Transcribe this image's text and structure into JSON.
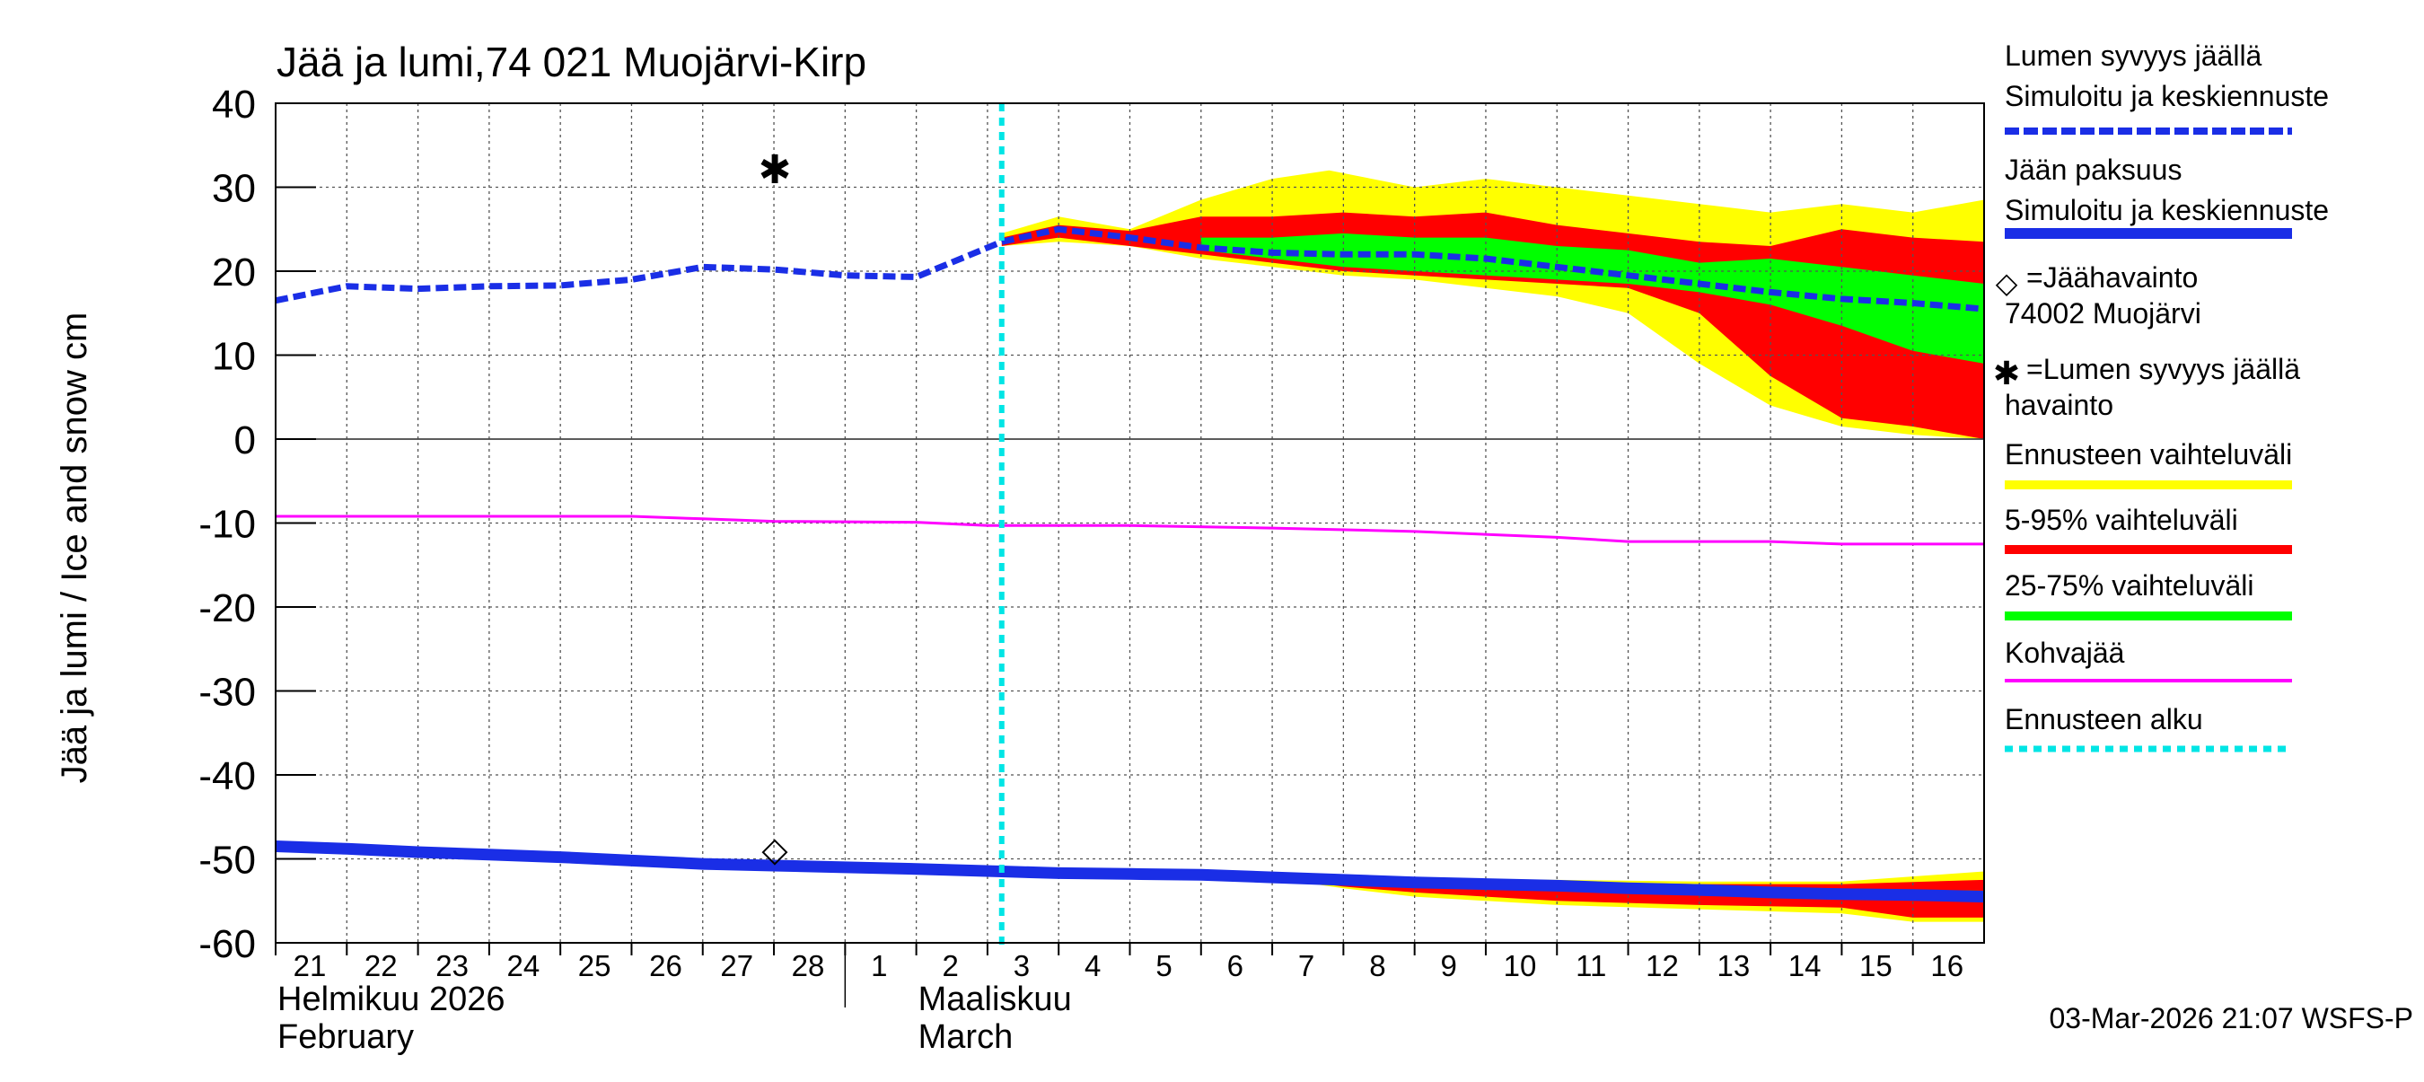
{
  "chart_data": {
    "type": "area",
    "title": "Jää ja lumi,74 021 Muojärvi-Kirp",
    "ylabel": "Jää ja lumi / Ice and snow    cm",
    "ylim": [
      -60,
      40
    ],
    "yticks": [
      40,
      30,
      20,
      10,
      0,
      -10,
      -20,
      -30,
      -40,
      -50,
      -60
    ],
    "day_start": 21,
    "x_range_days": [
      0,
      24
    ],
    "x_tick_labels": [
      "21",
      "22",
      "23",
      "24",
      "25",
      "26",
      "27",
      "28",
      "1",
      "2",
      "3",
      "4",
      "5",
      "6",
      "7",
      "8",
      "9",
      "10",
      "11",
      "12",
      "13",
      "14",
      "15",
      "16"
    ],
    "month_labels": [
      {
        "line1": "Helmikuu  2026",
        "line2": "February",
        "day": 0
      },
      {
        "line1": "Maaliskuu",
        "line2": "March",
        "day": 9
      }
    ],
    "month_divider_day": 8,
    "forecast_start_day": 10.2,
    "timestamp": "03-Mar-2026 21:07 WSFS-P",
    "series": {
      "snow_sim": {
        "name": "Lumen syvyys jäällä Simuloitu ja keskiennuste",
        "color": "#1a2ee6",
        "points": [
          [
            0,
            16.5
          ],
          [
            1,
            18.2
          ],
          [
            2,
            17.9
          ],
          [
            3,
            18.2
          ],
          [
            4,
            18.3
          ],
          [
            5,
            19.0
          ],
          [
            6,
            20.5
          ],
          [
            7,
            20.2
          ],
          [
            8,
            19.5
          ],
          [
            9,
            19.3
          ],
          [
            10.2,
            23.5
          ],
          [
            11,
            25.0
          ],
          [
            12,
            24.0
          ],
          [
            13,
            22.8
          ],
          [
            14,
            22.2
          ],
          [
            15,
            22.0
          ],
          [
            16,
            22.0
          ],
          [
            17,
            21.5
          ],
          [
            18,
            20.5
          ],
          [
            19,
            19.5
          ],
          [
            20,
            18.5
          ],
          [
            21,
            17.5
          ],
          [
            22,
            16.7
          ],
          [
            23,
            16.2
          ],
          [
            24,
            15.5
          ]
        ]
      },
      "ice_sim": {
        "name": "Jään paksuus Simuloitu ja keskiennuste",
        "color": "#1a2ee6",
        "points": [
          [
            0,
            -48.5
          ],
          [
            1,
            -48.8
          ],
          [
            2,
            -49.2
          ],
          [
            3,
            -49.5
          ],
          [
            4,
            -49.8
          ],
          [
            5,
            -50.2
          ],
          [
            6,
            -50.6
          ],
          [
            7,
            -50.8
          ],
          [
            8,
            -51.0
          ],
          [
            9,
            -51.2
          ],
          [
            10.2,
            -51.5
          ],
          [
            11,
            -51.7
          ],
          [
            12,
            -51.8
          ],
          [
            13,
            -51.9
          ],
          [
            14,
            -52.2
          ],
          [
            15,
            -52.5
          ],
          [
            16,
            -52.8
          ],
          [
            17,
            -53.0
          ],
          [
            18,
            -53.2
          ],
          [
            19,
            -53.5
          ],
          [
            20,
            -53.7
          ],
          [
            21,
            -54.0
          ],
          [
            22,
            -54.2
          ],
          [
            23,
            -54.3
          ],
          [
            24,
            -54.5
          ]
        ]
      },
      "slush": {
        "name": "Kohvajää",
        "color": "#ff00ff",
        "points": [
          [
            0,
            -9.2
          ],
          [
            5,
            -9.2
          ],
          [
            6,
            -9.5
          ],
          [
            7,
            -9.8
          ],
          [
            9,
            -9.9
          ],
          [
            10,
            -10.3
          ],
          [
            12,
            -10.3
          ],
          [
            14,
            -10.6
          ],
          [
            16,
            -11.0
          ],
          [
            18,
            -11.7
          ],
          [
            19,
            -12.2
          ],
          [
            21,
            -12.2
          ],
          [
            22,
            -12.5
          ],
          [
            24,
            -12.5
          ]
        ]
      }
    },
    "bands": [
      {
        "name": "Ennusteen vaihteluväli",
        "color": "#ffff00",
        "upper": [
          [
            10.2,
            24.5
          ],
          [
            11,
            26.5
          ],
          [
            12,
            25.0
          ],
          [
            13,
            28.5
          ],
          [
            14,
            31.0
          ],
          [
            14.8,
            32.0
          ],
          [
            16,
            30.0
          ],
          [
            17,
            31.0
          ],
          [
            18,
            30.0
          ],
          [
            19,
            29.0
          ],
          [
            20,
            28.0
          ],
          [
            21,
            27.0
          ],
          [
            22,
            28.0
          ],
          [
            23,
            27.0
          ],
          [
            24,
            28.5
          ]
        ],
        "lower": [
          [
            10.2,
            23.0
          ],
          [
            11,
            23.5
          ],
          [
            12,
            23.0
          ],
          [
            13,
            21.5
          ],
          [
            14,
            20.5
          ],
          [
            15,
            19.5
          ],
          [
            16,
            19.0
          ],
          [
            17,
            18.0
          ],
          [
            18,
            17.0
          ],
          [
            19,
            15.0
          ],
          [
            20,
            9.0
          ],
          [
            21,
            4.0
          ],
          [
            22,
            1.5
          ],
          [
            23,
            0.5
          ],
          [
            24,
            0.0
          ]
        ]
      },
      {
        "name": "5-95% vaihteluväli",
        "color": "#ff0000",
        "upper": [
          [
            10.2,
            24.0
          ],
          [
            11,
            25.5
          ],
          [
            12,
            24.8
          ],
          [
            13,
            26.5
          ],
          [
            14,
            26.5
          ],
          [
            15,
            27.0
          ],
          [
            16,
            26.5
          ],
          [
            17,
            27.0
          ],
          [
            18,
            25.5
          ],
          [
            19,
            24.5
          ],
          [
            20,
            23.5
          ],
          [
            21,
            23.0
          ],
          [
            22,
            25.0
          ],
          [
            23,
            24.0
          ],
          [
            24,
            23.5
          ]
        ],
        "lower": [
          [
            10.2,
            23.0
          ],
          [
            11,
            24.0
          ],
          [
            12,
            23.0
          ],
          [
            13,
            22.0
          ],
          [
            14,
            21.0
          ],
          [
            15,
            20.0
          ],
          [
            16,
            19.5
          ],
          [
            17,
            19.0
          ],
          [
            18,
            18.5
          ],
          [
            19,
            18.0
          ],
          [
            20,
            15.0
          ],
          [
            21,
            7.5
          ],
          [
            22,
            2.5
          ],
          [
            23,
            1.5
          ],
          [
            24,
            0.0
          ]
        ]
      },
      {
        "name": "25-75% vaihteluväli",
        "color": "#00ff00",
        "upper": [
          [
            13,
            24.0
          ],
          [
            14,
            24.0
          ],
          [
            15,
            24.5
          ],
          [
            16,
            24.0
          ],
          [
            17,
            24.0
          ],
          [
            18,
            23.0
          ],
          [
            19,
            22.5
          ],
          [
            20,
            21.0
          ],
          [
            21,
            21.5
          ],
          [
            22,
            20.5
          ],
          [
            23,
            19.5
          ],
          [
            24,
            18.5
          ]
        ],
        "lower": [
          [
            13,
            22.5
          ],
          [
            14,
            21.5
          ],
          [
            15,
            20.5
          ],
          [
            16,
            20.0
          ],
          [
            17,
            19.5
          ],
          [
            18,
            19.0
          ],
          [
            19,
            18.5
          ],
          [
            20,
            17.5
          ],
          [
            21,
            16.0
          ],
          [
            22,
            13.5
          ],
          [
            23,
            10.5
          ],
          [
            24,
            9.0
          ]
        ]
      },
      {
        "name": "Ennusteen vaihteluväli (ice)",
        "color": "#ffff00",
        "upper": [
          [
            14,
            -52.0
          ],
          [
            16,
            -52.3
          ],
          [
            18,
            -52.5
          ],
          [
            20,
            -52.7
          ],
          [
            22,
            -52.7
          ],
          [
            24,
            -51.5
          ]
        ],
        "lower": [
          [
            14,
            -52.3
          ],
          [
            15,
            -53.5
          ],
          [
            16,
            -54.5
          ],
          [
            18,
            -55.5
          ],
          [
            20,
            -56.0
          ],
          [
            22,
            -56.5
          ],
          [
            23,
            -57.5
          ],
          [
            24,
            -57.5
          ]
        ]
      },
      {
        "name": "5-95% vaihteluväli (ice)",
        "color": "#ff0000",
        "upper": [
          [
            14,
            -52.1
          ],
          [
            16,
            -52.4
          ],
          [
            18,
            -52.7
          ],
          [
            20,
            -53.0
          ],
          [
            22,
            -53.0
          ],
          [
            24,
            -52.5
          ]
        ],
        "lower": [
          [
            14,
            -52.2
          ],
          [
            15,
            -53.3
          ],
          [
            16,
            -54.0
          ],
          [
            18,
            -55.0
          ],
          [
            20,
            -55.5
          ],
          [
            22,
            -55.8
          ],
          [
            23,
            -57.0
          ],
          [
            24,
            -57.0
          ]
        ]
      },
      {
        "name": "25-75% vaihteluväli (ice)",
        "color": "#00ff00",
        "upper": [
          [
            18,
            -53.2
          ],
          [
            20,
            -53.4
          ],
          [
            22,
            -53.6
          ],
          [
            24,
            -53.8
          ]
        ],
        "lower": [
          [
            18,
            -53.7
          ],
          [
            20,
            -54.1
          ],
          [
            22,
            -54.6
          ],
          [
            24,
            -55.0
          ]
        ]
      }
    ],
    "observations": {
      "ice": {
        "day": 7,
        "value": -49.0,
        "marker": "◇"
      },
      "snow": {
        "day": 7,
        "value": 32.0,
        "marker": "✱"
      }
    },
    "legend": [
      {
        "line1": "Lumen syvyys jäällä",
        "line2": "Simuloitu ja keskiennuste",
        "color": "#1a2ee6",
        "style": "dashed"
      },
      {
        "line1": "Jään paksuus",
        "line2": "Simuloitu ja keskiennuste",
        "color": "#1a2ee6",
        "style": "solid"
      },
      {
        "marker": "◇",
        "line1": "=Jäähavainto",
        "line2": "74002 Muojärvi"
      },
      {
        "marker": "✱",
        "line1": "=Lumen syvyys jäällä",
        "line2": "havainto"
      },
      {
        "line1": "Ennusteen vaihteluväli",
        "color": "#ffff00",
        "style": "solid"
      },
      {
        "line1": "5-95% vaihteluväli",
        "color": "#ff0000",
        "style": "solid"
      },
      {
        "line1": "25-75% vaihteluväli",
        "color": "#00ff00",
        "style": "solid"
      },
      {
        "line1": "Kohvajää",
        "color": "#ff00ff",
        "style": "thin"
      },
      {
        "line1": "Ennusteen alku",
        "color": "#00e5e5",
        "style": "dotted"
      }
    ]
  }
}
